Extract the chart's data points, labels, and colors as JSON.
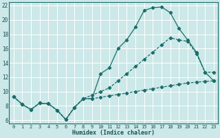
{
  "xlabel": "Humidex (Indice chaleur)",
  "bg_color": "#cce8e8",
  "line_color": "#1a6e6a",
  "grid_color": "#ffffff",
  "xlim": [
    -0.5,
    23.5
  ],
  "ylim": [
    5.5,
    22.5
  ],
  "xticks": [
    0,
    1,
    2,
    3,
    4,
    5,
    6,
    7,
    8,
    9,
    10,
    11,
    12,
    13,
    14,
    15,
    16,
    17,
    18,
    19,
    20,
    21,
    22,
    23
  ],
  "yticks": [
    6,
    8,
    10,
    12,
    14,
    16,
    18,
    20,
    22
  ],
  "line1_x": [
    0,
    1,
    2,
    3,
    4,
    5,
    6,
    7,
    8,
    9,
    10,
    11,
    12,
    13,
    14,
    15,
    16,
    17,
    18,
    19,
    20,
    21,
    22,
    23
  ],
  "line1_y": [
    9.3,
    8.2,
    7.5,
    8.4,
    8.3,
    7.4,
    6.1,
    7.8,
    9.0,
    9.0,
    12.5,
    13.3,
    16.0,
    17.2,
    19.0,
    21.3,
    21.7,
    21.8,
    21.0,
    18.8,
    17.2,
    15.5,
    12.7,
    11.5
  ],
  "line2_x": [
    0,
    1,
    2,
    3,
    4,
    5,
    6,
    7,
    8,
    9,
    10,
    11,
    12,
    13,
    14,
    15,
    16,
    17,
    18,
    19,
    20,
    21,
    22,
    23
  ],
  "line2_y": [
    9.3,
    8.2,
    7.5,
    8.4,
    8.3,
    7.4,
    6.1,
    7.8,
    9.0,
    9.5,
    10.0,
    10.5,
    11.5,
    12.5,
    13.5,
    14.5,
    15.5,
    16.5,
    17.5,
    17.2,
    17.0,
    15.3,
    12.7,
    12.7
  ],
  "line3_x": [
    0,
    1,
    2,
    3,
    4,
    5,
    6,
    7,
    8,
    9,
    10,
    11,
    12,
    13,
    14,
    15,
    16,
    17,
    18,
    19,
    20,
    21,
    22,
    23
  ],
  "line3_y": [
    9.3,
    8.2,
    7.5,
    8.4,
    8.3,
    7.4,
    6.1,
    7.8,
    9.0,
    9.0,
    9.2,
    9.4,
    9.6,
    9.8,
    10.0,
    10.2,
    10.4,
    10.6,
    10.8,
    11.0,
    11.2,
    11.3,
    11.4,
    11.5
  ]
}
